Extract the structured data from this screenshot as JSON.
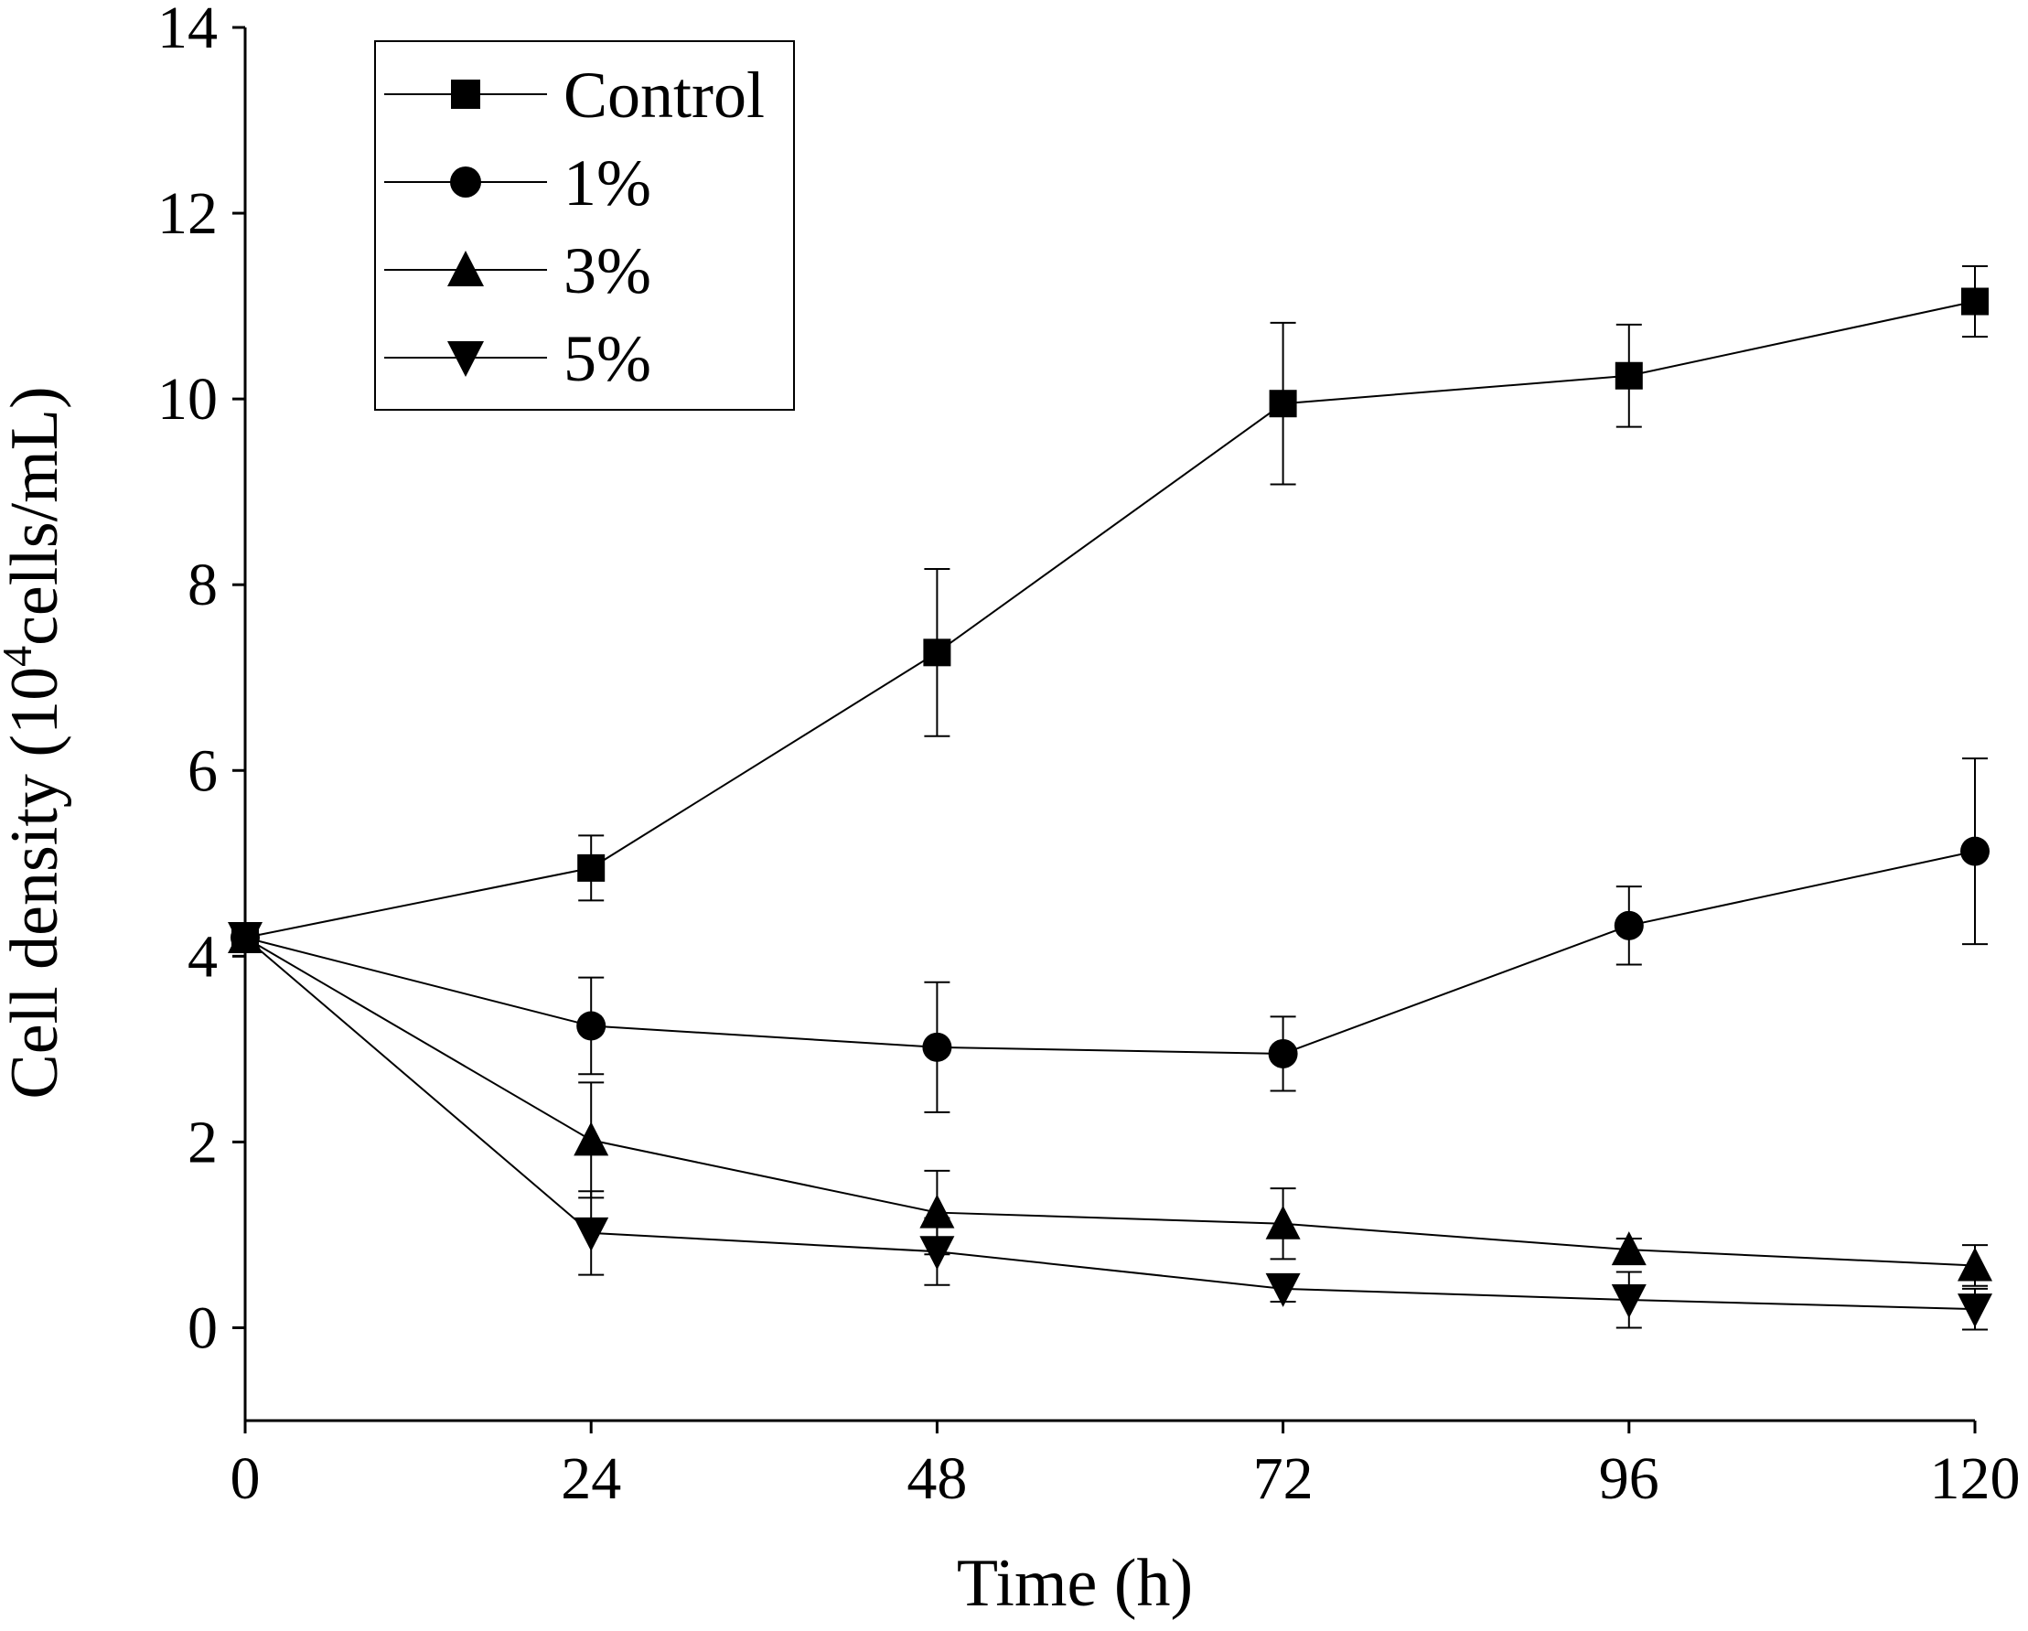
{
  "chart_data": {
    "type": "line",
    "title": "",
    "xlabel": "Time (h)",
    "ylabel": {
      "prefix": "Cell density (10",
      "superscript": "4",
      "suffix": "cells/mL)"
    },
    "x": [
      0,
      24,
      48,
      72,
      96,
      120
    ],
    "x_ticks": [
      "0",
      "24",
      "48",
      "72",
      "96",
      "120"
    ],
    "y_ticks": [
      "0",
      "2",
      "4",
      "6",
      "8",
      "10",
      "12",
      "14"
    ],
    "xlim": [
      0,
      120
    ],
    "ylim": [
      -1,
      14
    ],
    "grid": false,
    "legend_position": "top-left",
    "series": [
      {
        "name": "Control",
        "marker": "square",
        "values": [
          4.2,
          4.95,
          7.27,
          9.95,
          10.25,
          11.05
        ],
        "errors": [
          0.05,
          0.35,
          0.9,
          0.87,
          0.55,
          0.38
        ]
      },
      {
        "name": "1%",
        "marker": "circle",
        "values": [
          4.2,
          3.25,
          3.02,
          2.95,
          4.33,
          5.13
        ],
        "errors": [
          0.05,
          0.52,
          0.7,
          0.4,
          0.42,
          1.0
        ]
      },
      {
        "name": "3%",
        "marker": "triangle-up",
        "values": [
          4.2,
          2.02,
          1.24,
          1.12,
          0.84,
          0.67
        ],
        "errors": [
          0.05,
          0.62,
          0.45,
          0.38,
          0.12,
          0.22
        ]
      },
      {
        "name": "5%",
        "marker": "triangle-down",
        "values": [
          4.2,
          1.02,
          0.82,
          0.42,
          0.3,
          0.2
        ],
        "errors": [
          0.05,
          0.45,
          0.36,
          0.14,
          0.3,
          0.22
        ]
      }
    ]
  }
}
